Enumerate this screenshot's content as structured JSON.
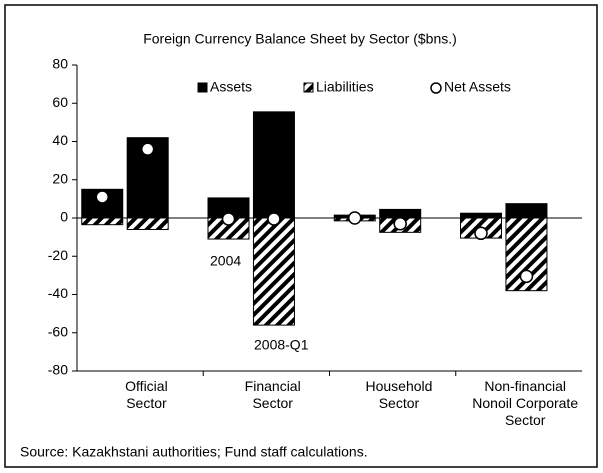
{
  "chart_data": {
    "type": "bar",
    "title": "Foreign Currency Balance Sheet by Sector ($bns.)",
    "categories": [
      [
        "Official",
        "Sector"
      ],
      [
        "Financial",
        "Sector"
      ],
      [
        "Household",
        "Sector"
      ],
      [
        "Non-financial",
        "Nonoil Corporate",
        "Sector"
      ]
    ],
    "series": [
      {
        "name": "Assets",
        "color": "#000000",
        "values": [
          [
            15,
            42
          ],
          [
            10.5,
            55.5
          ],
          [
            1.5,
            4.5
          ],
          [
            2.5,
            7.5
          ]
        ]
      },
      {
        "name": "Liabilities",
        "color": "#000000",
        "values": [
          [
            -3.5,
            -6
          ],
          [
            -11,
            -56
          ],
          [
            -1.5,
            -7.5
          ],
          [
            -10.5,
            -38
          ]
        ]
      },
      {
        "name": "Net Assets",
        "color": "#ffffff",
        "values": [
          [
            11,
            36
          ],
          [
            -0.5,
            -0.5
          ],
          [
            0,
            -3
          ],
          [
            -8,
            -30.5
          ]
        ]
      }
    ],
    "annotations": [
      "2004",
      "2008-Q1"
    ],
    "ylim": [
      -80,
      80
    ],
    "yticks": [
      -80,
      -60,
      -40,
      -20,
      0,
      20,
      40,
      60,
      80
    ],
    "source": "Source: Kazakhstani authorities; Fund staff calculations."
  }
}
